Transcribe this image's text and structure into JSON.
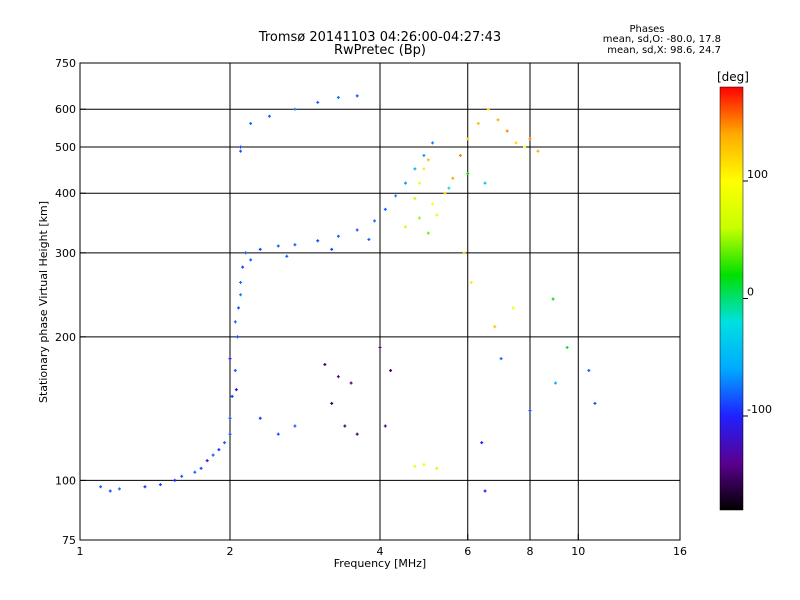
{
  "chart_data": {
    "type": "scatter",
    "title": "Tromsø 20141103 04:26:00-04:27:43",
    "subtitle": "RwPretec (Bp)",
    "stats": {
      "heading": "Phases",
      "line1": "mean, sd,O: -80.0, 17.8",
      "line2": "mean, sd,X:  98.6, 24.7"
    },
    "xlabel": "Frequency [MHz]",
    "ylabel": "Stationary phase Virtual Height [km]",
    "xscale": "log",
    "yscale": "log",
    "xlim": [
      1,
      16
    ],
    "ylim": [
      75,
      750
    ],
    "x_ticks": [
      1,
      2,
      4,
      6,
      8,
      10,
      16
    ],
    "x_ticks_labels": [
      "1",
      "2",
      "4",
      "6",
      "8",
      "10",
      "16"
    ],
    "x_grid": [
      2,
      4,
      6,
      8,
      10
    ],
    "y_ticks": [
      75,
      100,
      200,
      300,
      400,
      500,
      600,
      750
    ],
    "y_ticks_labels": [
      "75",
      "100",
      "200",
      "300",
      "400",
      "500",
      "600",
      "750"
    ],
    "y_grid": [
      100,
      200,
      300,
      400,
      500,
      600
    ],
    "grid": true,
    "colorbar": {
      "label": "[deg]",
      "range": [
        -180,
        180
      ],
      "ticks": [
        100,
        0,
        -100
      ],
      "tick_labels": [
        "100",
        "0",
        "-100"
      ],
      "colors": [
        "#000000",
        "#5a0090",
        "#2020ff",
        "#00aaff",
        "#00e0e0",
        "#00e000",
        "#c8ff00",
        "#ffff00",
        "#ffaa00",
        "#ff0000"
      ]
    },
    "series": [
      {
        "points": [
          [
            1.1,
            97,
            -80
          ],
          [
            1.15,
            95,
            -85
          ],
          [
            1.2,
            96,
            -75
          ],
          [
            1.35,
            97,
            -95
          ],
          [
            1.45,
            98,
            -90
          ],
          [
            1.55,
            100,
            -100
          ],
          [
            1.6,
            102,
            -85
          ],
          [
            1.7,
            104,
            -80
          ],
          [
            1.75,
            106,
            -90
          ],
          [
            1.8,
            110,
            -100
          ],
          [
            1.85,
            113,
            -85
          ],
          [
            1.9,
            116,
            -95
          ],
          [
            1.95,
            120,
            -80
          ],
          [
            2.0,
            125,
            -90
          ],
          [
            2.0,
            135,
            -85
          ],
          [
            2.02,
            150,
            -95
          ],
          [
            2.05,
            170,
            -80
          ],
          [
            2.07,
            200,
            -90
          ],
          [
            2.08,
            230,
            -85
          ],
          [
            2.1,
            260,
            -75
          ],
          [
            2.12,
            280,
            -90
          ],
          [
            2.1,
            245,
            -70
          ],
          [
            2.05,
            215,
            -80
          ],
          [
            2.0,
            180,
            -100
          ],
          [
            2.06,
            155,
            -110
          ],
          [
            2.15,
            300,
            -85
          ],
          [
            2.3,
            305,
            -90
          ],
          [
            2.5,
            310,
            -80
          ],
          [
            2.7,
            312,
            -85
          ],
          [
            3.0,
            318,
            -90
          ],
          [
            3.3,
            325,
            -80
          ],
          [
            3.6,
            335,
            -85
          ],
          [
            3.9,
            350,
            -75
          ],
          [
            4.1,
            370,
            -80
          ],
          [
            4.3,
            395,
            -70
          ],
          [
            4.5,
            420,
            -65
          ],
          [
            4.7,
            450,
            -60
          ],
          [
            4.9,
            480,
            -65
          ],
          [
            5.1,
            510,
            -70
          ],
          [
            2.2,
            290,
            -80
          ],
          [
            2.6,
            295,
            -85
          ],
          [
            3.2,
            305,
            -90
          ],
          [
            3.8,
            320,
            -80
          ],
          [
            2.2,
            560,
            -75
          ],
          [
            2.4,
            580,
            -80
          ],
          [
            2.7,
            600,
            -70
          ],
          [
            3.0,
            620,
            -80
          ],
          [
            3.3,
            635,
            -75
          ],
          [
            3.6,
            640,
            -85
          ],
          [
            2.1,
            500,
            -90
          ],
          [
            2.1,
            490,
            -85
          ],
          [
            3.1,
            175,
            -150
          ],
          [
            3.3,
            165,
            -140
          ],
          [
            3.5,
            160,
            -145
          ],
          [
            3.2,
            145,
            -160
          ],
          [
            3.4,
            130,
            -150
          ],
          [
            3.6,
            125,
            -155
          ],
          [
            2.3,
            135,
            -95
          ],
          [
            2.5,
            125,
            -90
          ],
          [
            2.7,
            130,
            -85
          ],
          [
            4.0,
            190,
            -140
          ],
          [
            4.2,
            170,
            -150
          ],
          [
            4.1,
            130,
            -145
          ],
          [
            4.7,
            390,
            60
          ],
          [
            4.8,
            420,
            90
          ],
          [
            4.9,
            450,
            110
          ],
          [
            5.0,
            470,
            130
          ],
          [
            5.1,
            380,
            100
          ],
          [
            5.2,
            360,
            80
          ],
          [
            5.4,
            400,
            120
          ],
          [
            5.6,
            430,
            140
          ],
          [
            5.8,
            480,
            150
          ],
          [
            6.0,
            520,
            120
          ],
          [
            6.3,
            560,
            130
          ],
          [
            6.6,
            600,
            110
          ],
          [
            6.9,
            570,
            140
          ],
          [
            7.2,
            540,
            150
          ],
          [
            7.5,
            510,
            120
          ],
          [
            7.8,
            500,
            100
          ],
          [
            8.0,
            520,
            150
          ],
          [
            8.3,
            490,
            140
          ],
          [
            4.5,
            340,
            70
          ],
          [
            4.8,
            355,
            50
          ],
          [
            5.0,
            330,
            40
          ],
          [
            5.5,
            410,
            -20
          ],
          [
            6.0,
            440,
            20
          ],
          [
            6.5,
            420,
            -40
          ],
          [
            4.7,
            107,
            80
          ],
          [
            4.9,
            108,
            90
          ],
          [
            5.2,
            106,
            70
          ],
          [
            5.9,
            300,
            120
          ],
          [
            6.1,
            260,
            110
          ],
          [
            6.8,
            210,
            130
          ],
          [
            7.4,
            230,
            90
          ],
          [
            8.9,
            240,
            20
          ],
          [
            9.5,
            190,
            10
          ],
          [
            10.5,
            170,
            -80
          ],
          [
            10.8,
            145,
            -90
          ],
          [
            6.5,
            95,
            -110
          ],
          [
            6.4,
            120,
            -100
          ],
          [
            7.0,
            180,
            -80
          ],
          [
            8.0,
            140,
            -90
          ],
          [
            9.0,
            160,
            -60
          ]
        ]
      }
    ]
  }
}
